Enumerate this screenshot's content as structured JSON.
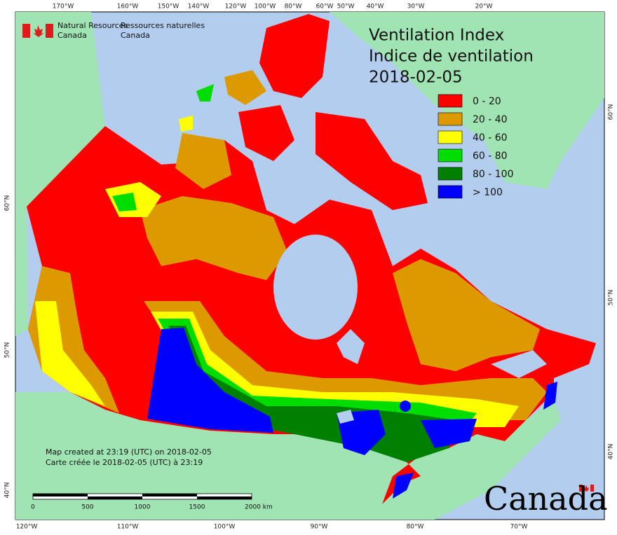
{
  "header": {
    "agency_en": [
      "Natural Resources",
      "Canada"
    ],
    "agency_fr": [
      "Ressources naturelles",
      "Canada"
    ]
  },
  "title": [
    "Ventilation Index",
    "Indice de ventilation",
    "2018-02-05"
  ],
  "legend": [
    {
      "label": "0 - 20",
      "color": "#ff0000"
    },
    {
      "label": "20 - 40",
      "color": "#dd9a00"
    },
    {
      "label": "40 - 60",
      "color": "#ffff00"
    },
    {
      "label": "60 - 80",
      "color": "#00dd00"
    },
    {
      "label": "80 - 100",
      "color": "#008000"
    },
    {
      "label": "> 100",
      "color": "#0000ff"
    }
  ],
  "graticule": {
    "top": [
      "170°W",
      "160°W",
      "150°W",
      "140°W",
      "120°W",
      "100°W",
      "80°W",
      "60°W",
      "50°W",
      "40°W",
      "30°W",
      "20°W"
    ],
    "bottom": [
      "120°W",
      "110°W",
      "100°W",
      "90°W",
      "80°W",
      "70°W"
    ],
    "left": [
      "60°N",
      "50°N",
      "40°N"
    ],
    "right": [
      "60°N",
      "50°N",
      "40°N"
    ]
  },
  "credits": [
    "Map created at 23:19 (UTC) on 2018-02-05",
    "Carte créée le 2018-02-05 (UTC) à 23:19"
  ],
  "scale_bar": [
    "0",
    "500",
    "1000",
    "1500",
    "2000 km"
  ],
  "wordmark": "Canada"
}
